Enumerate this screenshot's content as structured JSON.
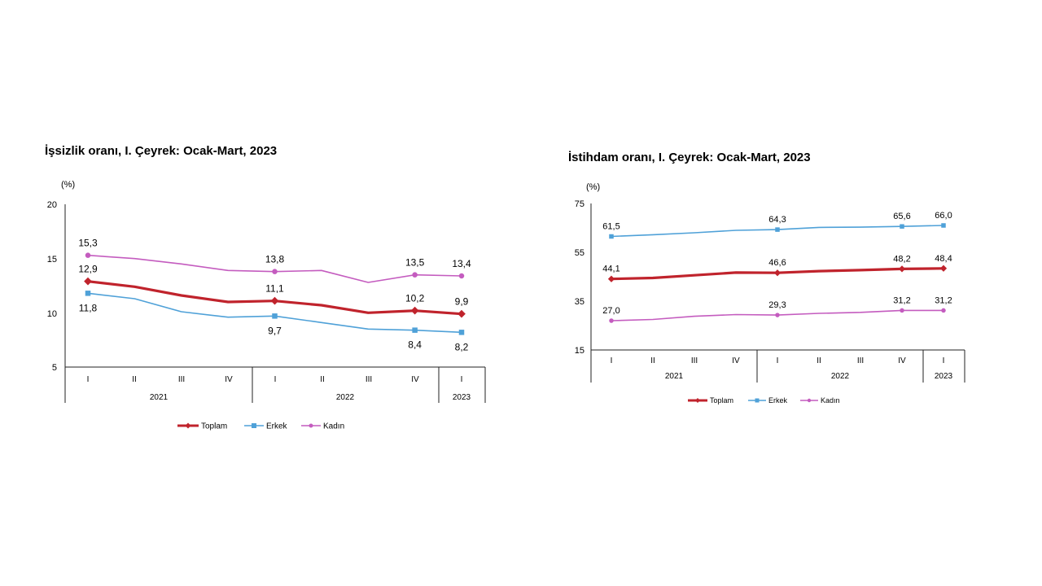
{
  "legend": {
    "toplam": "Toplam",
    "erkek": "Erkek",
    "kadin": "Kadın"
  },
  "colors": {
    "toplam": "#c0232c",
    "erkek": "#4fa1d8",
    "kadin": "#c45cbf"
  },
  "chart_data": [
    {
      "type": "line",
      "title": "İşsizlik oranı, I. Çeyrek: Ocak-Mart, 2023",
      "ylabel": "(%)",
      "ylim": [
        5,
        20
      ],
      "yticks": [
        "5",
        "10",
        "15",
        "20"
      ],
      "categories": [
        "I",
        "II",
        "III",
        "IV",
        "I",
        "II",
        "III",
        "IV",
        "I"
      ],
      "years": [
        {
          "label": "2021",
          "start": 0,
          "end": 3
        },
        {
          "label": "2022",
          "start": 4,
          "end": 7
        },
        {
          "label": "2023",
          "start": 8,
          "end": 8
        }
      ],
      "legend_position": "bottom",
      "series": [
        {
          "name": "Toplam",
          "key": "toplam",
          "values": [
            12.9,
            12.4,
            11.6,
            11.0,
            11.1,
            10.7,
            10.0,
            10.2,
            9.9
          ],
          "labels": [
            "12,9",
            null,
            null,
            null,
            "11,1",
            null,
            null,
            "10,2",
            "9,9"
          ],
          "label_pos": [
            "above",
            null,
            null,
            null,
            "above",
            null,
            null,
            "above",
            "above"
          ]
        },
        {
          "name": "Erkek",
          "key": "erkek",
          "values": [
            11.8,
            11.3,
            10.1,
            9.6,
            9.7,
            9.1,
            8.5,
            8.4,
            8.2
          ],
          "labels": [
            "11,8",
            null,
            null,
            null,
            "9,7",
            null,
            null,
            "8,4",
            "8,2"
          ],
          "label_pos": [
            "below",
            null,
            null,
            null,
            "below",
            null,
            null,
            "below",
            "below"
          ]
        },
        {
          "name": "Kadın",
          "key": "kadin",
          "values": [
            15.3,
            15.0,
            14.5,
            13.9,
            13.8,
            13.9,
            12.8,
            13.5,
            13.4
          ],
          "labels": [
            "15,3",
            null,
            null,
            null,
            "13,8",
            null,
            null,
            "13,5",
            "13,4"
          ],
          "label_pos": [
            "above",
            null,
            null,
            null,
            "above",
            null,
            null,
            "above",
            "above"
          ]
        }
      ]
    },
    {
      "type": "line",
      "title": "İstihdam oranı, I. Çeyrek: Ocak-Mart, 2023",
      "ylabel": "(%)",
      "ylim": [
        15,
        75
      ],
      "yticks": [
        "15",
        "35",
        "55",
        "75"
      ],
      "categories": [
        "I",
        "II",
        "III",
        "IV",
        "I",
        "II",
        "III",
        "IV",
        "I"
      ],
      "years": [
        {
          "label": "2021",
          "start": 0,
          "end": 3
        },
        {
          "label": "2022",
          "start": 4,
          "end": 7
        },
        {
          "label": "2023",
          "start": 8,
          "end": 8
        }
      ],
      "legend_position": "bottom",
      "series": [
        {
          "name": "Toplam",
          "key": "toplam",
          "values": [
            44.1,
            44.5,
            45.6,
            46.7,
            46.6,
            47.3,
            47.7,
            48.2,
            48.4
          ],
          "labels": [
            "44,1",
            null,
            null,
            null,
            "46,6",
            null,
            null,
            "48,2",
            "48,4"
          ],
          "label_pos": [
            "above",
            null,
            null,
            null,
            "above",
            null,
            null,
            "above",
            "above"
          ]
        },
        {
          "name": "Erkek",
          "key": "erkek",
          "values": [
            61.5,
            62.2,
            63.0,
            64.0,
            64.3,
            65.2,
            65.3,
            65.6,
            66.0
          ],
          "labels": [
            "61,5",
            null,
            null,
            null,
            "64,3",
            null,
            null,
            "65,6",
            "66,0"
          ],
          "label_pos": [
            "above",
            null,
            null,
            null,
            "above",
            null,
            null,
            "above",
            "above"
          ]
        },
        {
          "name": "Kadın",
          "key": "kadin",
          "values": [
            27.0,
            27.5,
            28.8,
            29.5,
            29.3,
            30.0,
            30.4,
            31.2,
            31.2
          ],
          "labels": [
            "27,0",
            null,
            null,
            null,
            "29,3",
            null,
            null,
            "31,2",
            "31,2"
          ],
          "label_pos": [
            "above",
            null,
            null,
            null,
            "above",
            null,
            null,
            "above",
            "above"
          ]
        }
      ]
    }
  ]
}
